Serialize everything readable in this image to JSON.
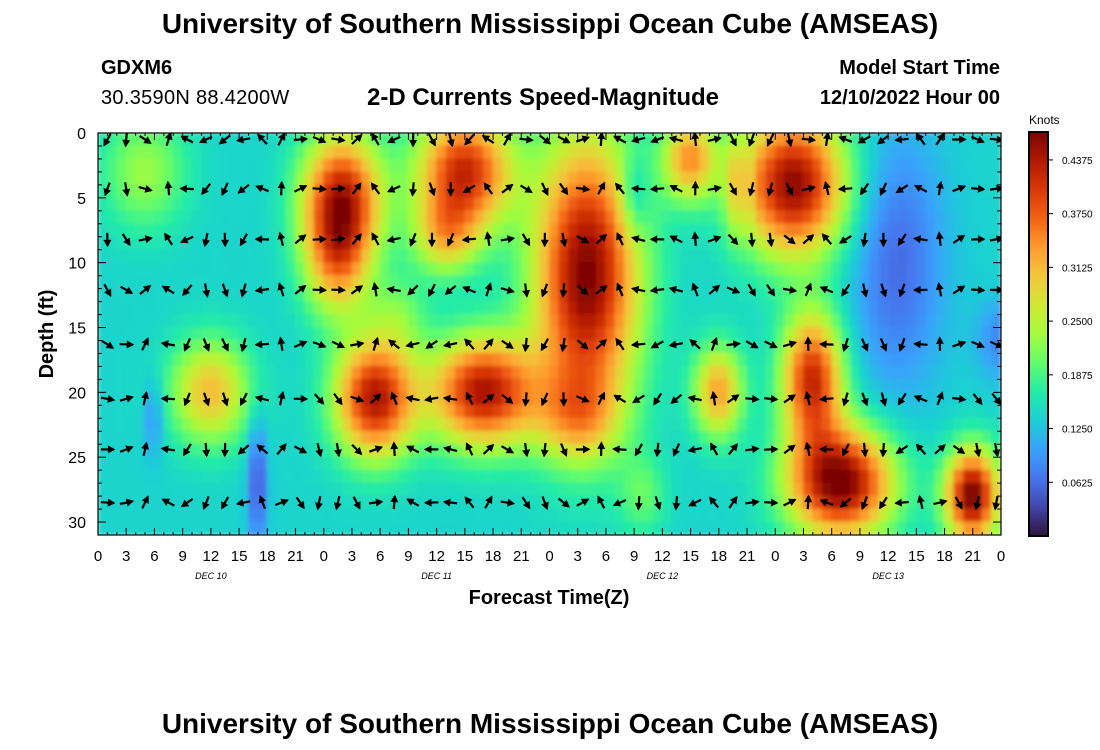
{
  "header": {
    "title": "University of Southern Mississippi Ocean Cube (AMSEAS)",
    "station": "GDXM6",
    "coords": "30.3590N  88.4200W",
    "subtitle": "2-D Currents Speed-Magnitude",
    "model_start_label": "Model Start Time",
    "model_start_value": "12/10/2022 Hour 00"
  },
  "footer": {
    "title": "University of Southern Mississippi Ocean Cube (AMSEAS)"
  },
  "chart_data": {
    "type": "heatmap",
    "title": "2-D Currents Speed-Magnitude",
    "xlabel": "Forecast Time(Z)",
    "ylabel": "Depth (ft)",
    "x_tick_labels": [
      "0",
      "3",
      "6",
      "9",
      "12",
      "15",
      "18",
      "21",
      "0",
      "3",
      "6",
      "9",
      "12",
      "15",
      "18",
      "21",
      "0",
      "3",
      "6",
      "9",
      "12",
      "15",
      "18",
      "21",
      "0",
      "3",
      "6",
      "9",
      "12",
      "15",
      "18",
      "21",
      "0"
    ],
    "x_range_hours": [
      0,
      96
    ],
    "day_labels": [
      {
        "label": "DEC 10",
        "hour": 12
      },
      {
        "label": "DEC 11",
        "hour": 36
      },
      {
        "label": "DEC 12",
        "hour": 60
      },
      {
        "label": "DEC 13",
        "hour": 84
      }
    ],
    "y_ticks": [
      0,
      5,
      10,
      15,
      20,
      25,
      30
    ],
    "y_tick_labels": [
      "0",
      "5",
      "10",
      "15",
      "20",
      "25",
      "30"
    ],
    "ylim": [
      0,
      31
    ],
    "y_inverted": true,
    "colorbar": {
      "title": "Knots",
      "min": 0.0,
      "max": 0.47,
      "tick_values": [
        0.4375,
        0.375,
        0.3125,
        0.25,
        0.1875,
        0.125,
        0.0625
      ],
      "tick_labels": [
        "0.4375",
        "0.3750",
        "0.3125",
        "0.2500",
        "0.1875",
        "0.1250",
        "0.0625"
      ],
      "colors": [
        "#30123b",
        "#4145ab",
        "#4675ed",
        "#39a2fc",
        "#1bcfd4",
        "#24eca6",
        "#61fc6c",
        "#a4fc3b",
        "#d1e834",
        "#f3c63a",
        "#fe9b2d",
        "#f36315",
        "#d93806",
        "#b11901",
        "#7a0402"
      ]
    },
    "arrow_depths": [
      0.5,
      4.3,
      8.2,
      12.1,
      16.3,
      20.5,
      24.4,
      28.5
    ],
    "arrow_hours": [
      1,
      3,
      5,
      7.5,
      9.5,
      11.5,
      13.5,
      15.5,
      17.5,
      19.5,
      21.5,
      23.5,
      25.5,
      27.5,
      29.5,
      31.5,
      33.5,
      35.5,
      37.5,
      39.5,
      41.5,
      43.5,
      45.5,
      47.5,
      49.5,
      51.5,
      53.5,
      55.5,
      57.5,
      59.5,
      61.5,
      63.5,
      65.5,
      67.5,
      69.5,
      71.5,
      73.5,
      75.5,
      77.5,
      79.5,
      81.5,
      83.5,
      85.5,
      87.5,
      89.5,
      91.5,
      93.5,
      95.5
    ]
  }
}
